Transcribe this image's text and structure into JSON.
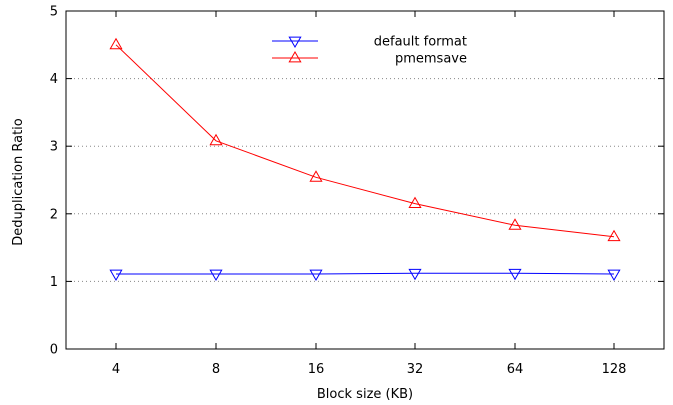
{
  "chart_data": {
    "type": "line",
    "xlabel": "Block size (KB)",
    "ylabel": "Deduplication Ratio",
    "categories": [
      "4",
      "8",
      "16",
      "32",
      "64",
      "128"
    ],
    "ylim": [
      0,
      5
    ],
    "yticks": [
      "0",
      "1",
      "2",
      "3",
      "4",
      "5"
    ],
    "grid": "horizontal dotted",
    "legend_position": "top-center",
    "series": [
      {
        "name": "default format",
        "values": [
          1.11,
          1.11,
          1.11,
          1.12,
          1.12,
          1.11
        ],
        "color": "#0000ff",
        "marker": "triangle-down"
      },
      {
        "name": "pmemsave",
        "values": [
          4.5,
          3.08,
          2.54,
          2.15,
          1.83,
          1.66
        ],
        "color": "#ff0000",
        "marker": "triangle-up"
      }
    ]
  }
}
